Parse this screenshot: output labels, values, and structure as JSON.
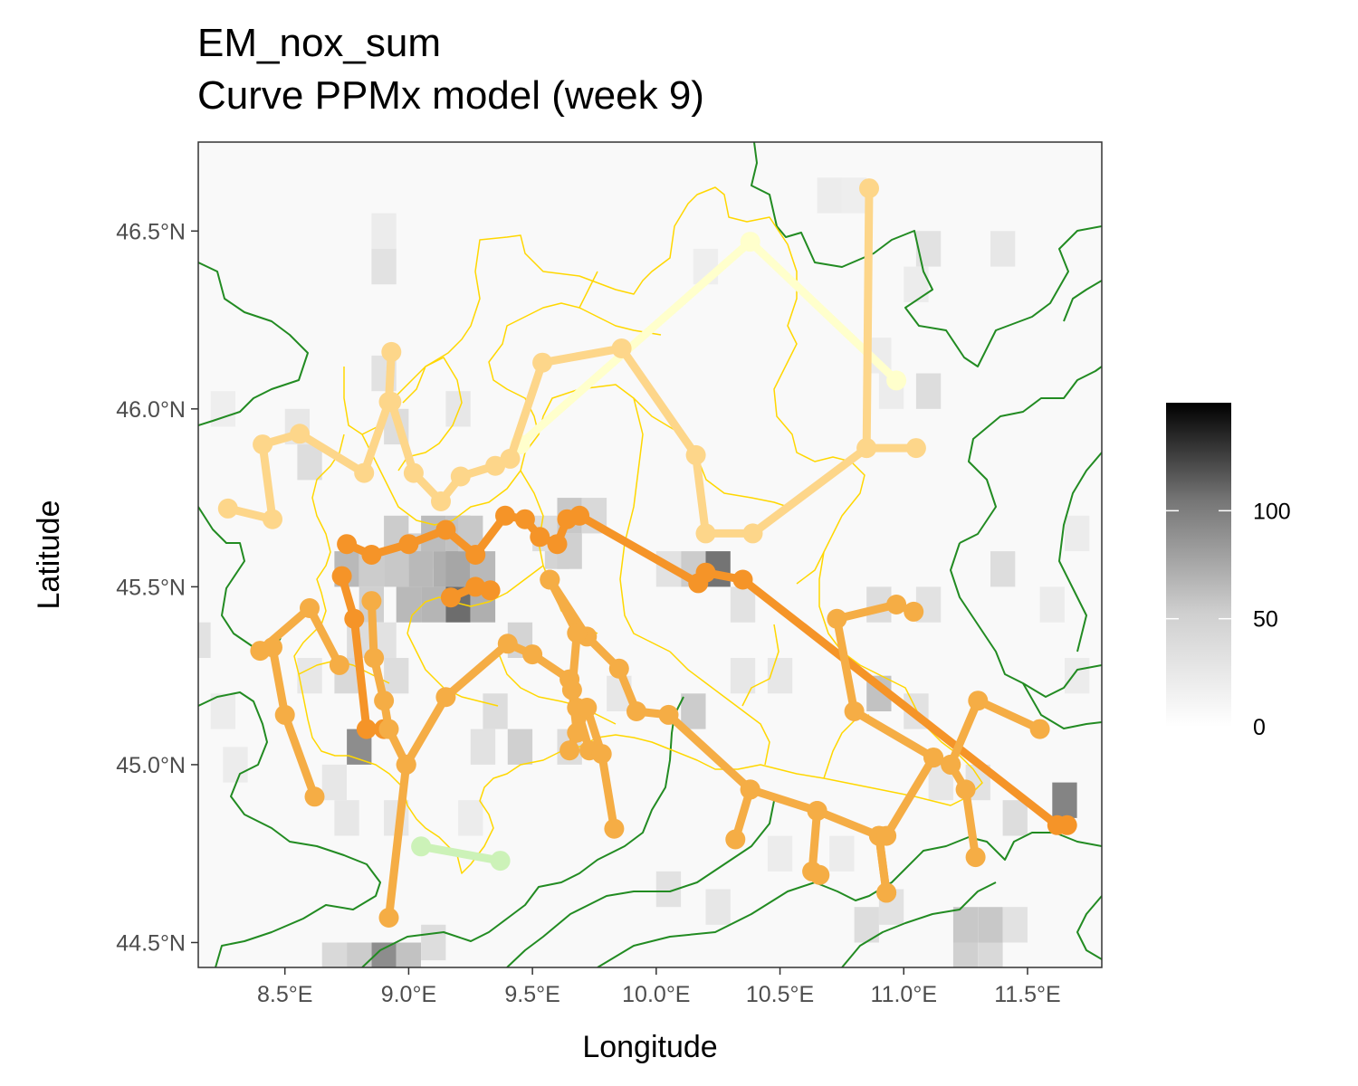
{
  "title": "EM_nox_sum",
  "subtitle": "Curve PPMx model (week 9)",
  "chart_data": {
    "type": "map",
    "xlabel": "Longitude",
    "ylabel": "Latitude",
    "xlim": [
      8.15,
      11.8
    ],
    "ylim": [
      44.43,
      46.75
    ],
    "x_ticks": [
      {
        "value": 8.5,
        "label": "8.5°E"
      },
      {
        "value": 9.0,
        "label": "9.0°E"
      },
      {
        "value": 9.5,
        "label": "9.5°E"
      },
      {
        "value": 10.0,
        "label": "10.0°E"
      },
      {
        "value": 10.5,
        "label": "10.5°E"
      },
      {
        "value": 11.0,
        "label": "11.0°E"
      },
      {
        "value": 11.5,
        "label": "11.5°E"
      }
    ],
    "y_ticks": [
      {
        "value": 44.5,
        "label": "44.5°N"
      },
      {
        "value": 45.0,
        "label": "45.0°N"
      },
      {
        "value": 45.5,
        "label": "45.5°N"
      },
      {
        "value": 46.0,
        "label": "46.0°N"
      },
      {
        "value": 46.5,
        "label": "46.5°N"
      }
    ],
    "grid": false,
    "legend": {
      "position": "right",
      "range": [
        0,
        150
      ],
      "ticks": [
        {
          "value": 0,
          "label": "0"
        },
        {
          "value": 50,
          "label": "50"
        },
        {
          "value": 100,
          "label": "100"
        }
      ],
      "color_low": "#ffffff",
      "color_high": "#000000"
    },
    "raster": {
      "cell_size": 0.1,
      "cells": [
        [
          8.9,
          46.5,
          6
        ],
        [
          8.9,
          46.4,
          10
        ],
        [
          11.1,
          46.45,
          10
        ],
        [
          11.4,
          46.45,
          8
        ],
        [
          10.8,
          46.6,
          5
        ],
        [
          10.7,
          46.6,
          6
        ],
        [
          11.05,
          46.35,
          6
        ],
        [
          10.2,
          46.4,
          5
        ],
        [
          8.25,
          46.0,
          5
        ],
        [
          8.55,
          45.95,
          8
        ],
        [
          8.6,
          45.85,
          12
        ],
        [
          8.9,
          46.1,
          10
        ],
        [
          8.95,
          45.95,
          12
        ],
        [
          9.2,
          46.0,
          8
        ],
        [
          10.9,
          46.15,
          6
        ],
        [
          10.95,
          46.05,
          6
        ],
        [
          11.1,
          46.05,
          12
        ],
        [
          11.7,
          45.65,
          6
        ],
        [
          9.65,
          45.7,
          22
        ],
        [
          9.75,
          45.7,
          14
        ],
        [
          9.6,
          45.6,
          16
        ],
        [
          9.65,
          45.6,
          18
        ],
        [
          9.55,
          45.65,
          12
        ],
        [
          8.95,
          45.65,
          20
        ],
        [
          9.05,
          45.6,
          18
        ],
        [
          9.1,
          45.65,
          28
        ],
        [
          9.2,
          45.65,
          25
        ],
        [
          9.15,
          45.55,
          35
        ],
        [
          9.05,
          45.55,
          30
        ],
        [
          8.95,
          45.55,
          22
        ],
        [
          9.0,
          45.45,
          30
        ],
        [
          9.1,
          45.45,
          32
        ],
        [
          9.2,
          45.45,
          75
        ],
        [
          9.3,
          45.45,
          35
        ],
        [
          9.2,
          45.55,
          40
        ],
        [
          9.3,
          45.55,
          30
        ],
        [
          9.25,
          45.65,
          22
        ],
        [
          8.85,
          45.45,
          18
        ],
        [
          8.75,
          45.55,
          30
        ],
        [
          8.85,
          45.55,
          20
        ],
        [
          8.8,
          45.35,
          12
        ],
        [
          8.9,
          45.35,
          10
        ],
        [
          8.6,
          45.25,
          8
        ],
        [
          8.75,
          45.25,
          14
        ],
        [
          8.95,
          45.25,
          12
        ],
        [
          9.45,
          45.35,
          16
        ],
        [
          9.35,
          45.15,
          12
        ],
        [
          9.3,
          45.05,
          10
        ],
        [
          9.45,
          45.05,
          18
        ],
        [
          9.65,
          45.05,
          12
        ],
        [
          10.25,
          45.55,
          70
        ],
        [
          10.15,
          45.55,
          20
        ],
        [
          10.05,
          45.55,
          10
        ],
        [
          10.35,
          45.45,
          10
        ],
        [
          10.15,
          45.15,
          20
        ],
        [
          10.35,
          45.25,
          8
        ],
        [
          10.5,
          45.25,
          8
        ],
        [
          10.9,
          45.2,
          25
        ],
        [
          11.05,
          45.15,
          10
        ],
        [
          11.4,
          45.55,
          12
        ],
        [
          11.6,
          45.45,
          6
        ],
        [
          11.7,
          45.25,
          6
        ],
        [
          10.9,
          45.45,
          12
        ],
        [
          11.1,
          45.45,
          10
        ],
        [
          11.65,
          44.9,
          60
        ],
        [
          11.45,
          44.85,
          12
        ],
        [
          11.3,
          44.95,
          10
        ],
        [
          11.15,
          44.95,
          8
        ],
        [
          8.8,
          45.05,
          55
        ],
        [
          8.7,
          44.95,
          8
        ],
        [
          8.3,
          45.0,
          6
        ],
        [
          8.75,
          44.85,
          8
        ],
        [
          8.9,
          44.45,
          55
        ],
        [
          9.0,
          44.45,
          25
        ],
        [
          8.8,
          44.45,
          20
        ],
        [
          8.7,
          44.45,
          14
        ],
        [
          9.1,
          44.5,
          12
        ],
        [
          10.05,
          44.65,
          10
        ],
        [
          10.25,
          44.6,
          8
        ],
        [
          10.85,
          44.55,
          12
        ],
        [
          10.95,
          44.6,
          10
        ],
        [
          11.25,
          44.55,
          22
        ],
        [
          11.35,
          44.55,
          22
        ],
        [
          11.25,
          44.45,
          18
        ],
        [
          11.35,
          44.45,
          14
        ],
        [
          11.45,
          44.55,
          10
        ],
        [
          8.15,
          45.35,
          10
        ],
        [
          8.25,
          45.15,
          6
        ],
        [
          9.85,
          45.2,
          8
        ],
        [
          10.5,
          44.75,
          6
        ],
        [
          10.75,
          44.75,
          6
        ],
        [
          9.25,
          44.85,
          6
        ],
        [
          8.95,
          44.85,
          8
        ]
      ]
    },
    "series": [
      {
        "color": "#ffffcc",
        "points": [
          [
            9.45,
            45.9
          ],
          [
            10.38,
            46.47
          ],
          [
            10.97,
            46.08
          ]
        ]
      },
      {
        "color": "#ccf2b8",
        "points": [
          [
            9.05,
            44.77
          ],
          [
            9.37,
            44.73
          ]
        ]
      },
      {
        "color": "#fdd68a",
        "points": [
          [
            8.27,
            45.72
          ],
          [
            8.45,
            45.69
          ],
          [
            8.41,
            45.9
          ],
          [
            8.56,
            45.93
          ],
          [
            8.82,
            45.82
          ],
          [
            8.92,
            46.02
          ],
          [
            8.93,
            46.16
          ]
        ]
      },
      {
        "color": "#fdd68a",
        "points": [
          [
            8.93,
            46.02
          ],
          [
            9.02,
            45.82
          ],
          [
            9.13,
            45.74
          ],
          [
            9.21,
            45.81
          ],
          [
            9.35,
            45.84
          ],
          [
            9.41,
            45.86
          ],
          [
            9.54,
            46.13
          ],
          [
            9.86,
            46.17
          ],
          [
            10.16,
            45.87
          ],
          [
            10.2,
            45.65
          ],
          [
            10.39,
            45.65
          ],
          [
            10.85,
            45.89
          ],
          [
            10.86,
            46.62
          ]
        ]
      },
      {
        "color": "#fdd68a",
        "points": [
          [
            10.85,
            45.89
          ],
          [
            11.05,
            45.89
          ]
        ]
      },
      {
        "color": "#f59428",
        "points": [
          [
            8.73,
            45.53
          ],
          [
            8.78,
            45.41
          ],
          [
            8.83,
            45.1
          ],
          [
            8.9,
            45.1
          ]
        ]
      },
      {
        "color": "#f59428",
        "points": [
          [
            8.75,
            45.62
          ],
          [
            8.85,
            45.59
          ],
          [
            9.0,
            45.62
          ],
          [
            9.15,
            45.66
          ],
          [
            9.27,
            45.59
          ],
          [
            9.39,
            45.7
          ],
          [
            9.47,
            45.69
          ],
          [
            9.53,
            45.64
          ],
          [
            9.6,
            45.62
          ],
          [
            9.64,
            45.69
          ],
          [
            9.69,
            45.7
          ],
          [
            10.17,
            45.51
          ],
          [
            10.2,
            45.54
          ],
          [
            10.35,
            45.52
          ],
          [
            11.62,
            44.83
          ],
          [
            11.66,
            44.83
          ]
        ]
      },
      {
        "color": "#f59428",
        "points": [
          [
            9.17,
            45.47
          ],
          [
            9.27,
            45.5
          ],
          [
            9.33,
            45.49
          ]
        ]
      },
      {
        "color": "#f5ad45",
        "points": [
          [
            8.92,
            44.57
          ],
          [
            8.99,
            45.0
          ],
          [
            9.15,
            45.19
          ],
          [
            9.4,
            45.34
          ],
          [
            9.5,
            45.31
          ],
          [
            9.65,
            45.24
          ],
          [
            9.68,
            45.16
          ],
          [
            9.73,
            45.04
          ]
        ]
      },
      {
        "color": "#f5ad45",
        "points": [
          [
            8.99,
            45.0
          ],
          [
            8.92,
            45.1
          ],
          [
            8.9,
            45.18
          ],
          [
            8.86,
            45.3
          ],
          [
            8.85,
            45.46
          ]
        ]
      },
      {
        "color": "#f5ad45",
        "points": [
          [
            8.62,
            44.91
          ],
          [
            8.5,
            45.14
          ],
          [
            8.45,
            45.33
          ],
          [
            8.4,
            45.32
          ],
          [
            8.6,
            45.44
          ],
          [
            8.72,
            45.28
          ]
        ]
      },
      {
        "color": "#f5ad45",
        "points": [
          [
            9.57,
            45.52
          ],
          [
            9.72,
            45.36
          ],
          [
            9.85,
            45.27
          ],
          [
            9.92,
            45.15
          ],
          [
            10.05,
            45.14
          ],
          [
            10.38,
            44.93
          ],
          [
            10.65,
            44.87
          ],
          [
            10.9,
            44.8
          ],
          [
            10.93,
            44.64
          ]
        ]
      },
      {
        "color": "#f5ad45",
        "points": [
          [
            9.57,
            45.52
          ],
          [
            9.68,
            45.37
          ],
          [
            9.66,
            45.21
          ],
          [
            9.68,
            45.09
          ],
          [
            9.65,
            45.04
          ],
          [
            9.72,
            45.16
          ],
          [
            9.78,
            45.03
          ],
          [
            9.83,
            44.82
          ]
        ]
      },
      {
        "color": "#f5ad45",
        "points": [
          [
            10.38,
            44.93
          ],
          [
            10.32,
            44.79
          ]
        ]
      },
      {
        "color": "#f5ad45",
        "points": [
          [
            10.65,
            44.87
          ],
          [
            10.63,
            44.7
          ],
          [
            10.66,
            44.69
          ]
        ]
      },
      {
        "color": "#f5ad45",
        "points": [
          [
            10.9,
            44.8
          ],
          [
            10.93,
            44.64
          ]
        ]
      },
      {
        "color": "#f5ad45",
        "points": [
          [
            11.55,
            45.1
          ],
          [
            11.3,
            45.18
          ],
          [
            11.19,
            45.0
          ],
          [
            11.25,
            44.93
          ],
          [
            11.29,
            44.74
          ]
        ]
      },
      {
        "color": "#f5ad45",
        "points": [
          [
            11.19,
            45.0
          ],
          [
            11.12,
            45.02
          ],
          [
            10.93,
            44.8
          ]
        ]
      },
      {
        "color": "#f5ad45",
        "points": [
          [
            11.12,
            45.02
          ],
          [
            10.8,
            45.15
          ],
          [
            10.73,
            45.41
          ],
          [
            10.97,
            45.45
          ],
          [
            11.04,
            45.43
          ]
        ]
      }
    ],
    "boundaries": {
      "region": {
        "color": "#228b22",
        "width": 2
      },
      "province": {
        "color": "#ffd700",
        "width": 1.5
      }
    }
  }
}
